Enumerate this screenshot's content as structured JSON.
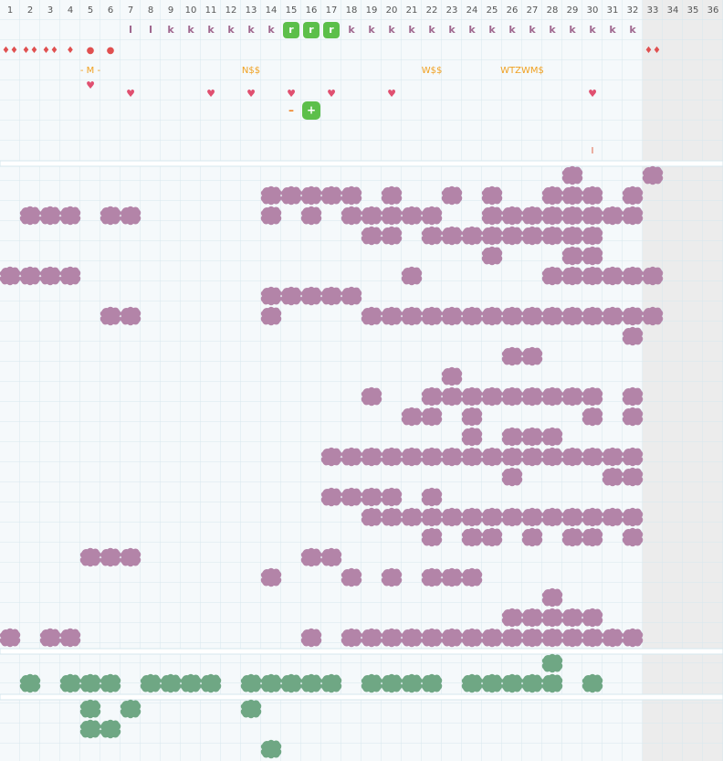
{
  "column_numbers": [
    1,
    2,
    3,
    4,
    5,
    6,
    7,
    8,
    9,
    10,
    11,
    12,
    13,
    14,
    15,
    16,
    17,
    18,
    19,
    20,
    21,
    22,
    23,
    24,
    25,
    26,
    27,
    28,
    29,
    30,
    31,
    32,
    33,
    34,
    35,
    36
  ],
  "top_row": [
    "I",
    "I",
    "k",
    "k",
    "k",
    "k",
    "k",
    "k",
    "r",
    "r",
    "r",
    "k",
    "k",
    "k",
    "k",
    "k",
    "k",
    "k",
    "k",
    "k",
    "k",
    "k",
    "k",
    "k",
    "k",
    "k"
  ],
  "symbols": [
    "♦♦",
    "♦♦",
    "♦♦",
    "♦",
    "●",
    "●",
    "♦♦"
  ],
  "tags": [
    "- M -",
    "N$$",
    "W$$",
    "WTZWM$"
  ],
  "hearts": [
    "♥",
    "♥",
    "♥",
    "♥",
    "♥",
    "♥",
    "♥",
    "♥"
  ],
  "controls": [
    "–",
    "+"
  ],
  "note": "I"
}
